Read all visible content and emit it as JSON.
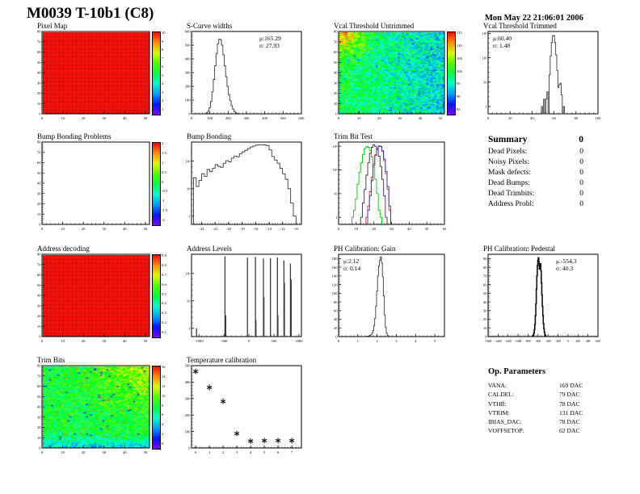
{
  "page": {
    "title": "M0039 T-10b1 (C8)",
    "timestamp": "Mon May 22 21:06:01 2006"
  },
  "summary": {
    "title": "Summary",
    "total": "0",
    "rows": [
      {
        "label": "Dead Pixels:",
        "value": "0"
      },
      {
        "label": "Noisy Pixels:",
        "value": "0"
      },
      {
        "label": "Mask defects:",
        "value": "0"
      },
      {
        "label": "Dead Bumps:",
        "value": "0"
      },
      {
        "label": "Dead Trimbits:",
        "value": "0"
      },
      {
        "label": "Address Probl:",
        "value": "0"
      }
    ]
  },
  "op_parameters": {
    "title": "Op. Parameters",
    "rows": [
      {
        "label": "VANA:",
        "value": "169 DAC"
      },
      {
        "label": "CALDEL:",
        "value": "79 DAC"
      },
      {
        "label": "VTHR:",
        "value": "78 DAC"
      },
      {
        "label": "VTRIM:",
        "value": "131 DAC"
      },
      {
        "label": "IBIAS_DAC:",
        "value": "78 DAC"
      },
      {
        "label": "VOFFSETOP:",
        "value": "62 DAC"
      }
    ]
  },
  "palette": {
    "map_red": "#f5100a",
    "hist_line": "#3a3a3a",
    "green_series": "#00cc00",
    "black_series": "#333333",
    "red_series": "#ee2222",
    "blue_series": "#2233cc"
  },
  "chart_data": [
    {
      "id": "pixel_map",
      "type": "heatmap",
      "title": "Pixel Map",
      "pattern": "uniform-red",
      "ncols": 52,
      "nrows": 80,
      "xrange": [
        0,
        52
      ],
      "x_ticks": [
        0,
        10,
        20,
        30,
        40,
        50
      ],
      "y_tick_labels": [
        "0",
        "10",
        "20",
        "30",
        "40",
        "50",
        "60",
        "70",
        "80"
      ],
      "colorbar_labels": [
        "10",
        "9",
        "8",
        "7",
        "6",
        "5",
        "4",
        "3",
        "2",
        "1"
      ]
    },
    {
      "id": "scurve",
      "type": "hist",
      "title": "S-Curve widths",
      "xrange": [
        0,
        600
      ],
      "x_ticks": [
        0,
        100,
        200,
        300,
        400,
        500,
        600
      ],
      "ylog": false,
      "ymax": 600,
      "y_ticks": [
        {
          "v": 0,
          "l": "0"
        },
        {
          "v": 100,
          "l": "100"
        },
        {
          "v": 200,
          "l": "200"
        },
        {
          "v": 300,
          "l": "300"
        },
        {
          "v": 400,
          "l": "400"
        },
        {
          "v": 500,
          "l": "500"
        },
        {
          "v": 600,
          "l": "600"
        }
      ],
      "x0": 70,
      "dx": 7.5,
      "counts": [
        1,
        3,
        8,
        20,
        45,
        90,
        160,
        250,
        350,
        440,
        510,
        545,
        540,
        500,
        430,
        350,
        270,
        200,
        140,
        95,
        60,
        35,
        18,
        8,
        3
      ],
      "color": "#3a3a3a",
      "stats": {
        "lines": [
          "μ:165.29",
          "σ: 27.93"
        ],
        "pos": "tr"
      }
    },
    {
      "id": "vcal_untrimmed",
      "type": "heatmap",
      "title": "Vcal Threshold Untrimmed",
      "pattern": "noise-vcal",
      "ncols": 52,
      "nrows": 80,
      "xrange": [
        0,
        52
      ],
      "x_ticks": [
        0,
        10,
        20,
        30,
        40,
        50
      ],
      "y_tick_labels": [
        "0",
        "10",
        "20",
        "30",
        "40",
        "50",
        "60",
        "70",
        "80"
      ],
      "colorbar_labels": [
        "115",
        "110",
        "105",
        "100",
        "95",
        "90",
        "85"
      ],
      "value_range": [
        85,
        115
      ]
    },
    {
      "id": "vcal_trimmed",
      "type": "hist",
      "title": "Vcal Threshold Trimmed",
      "xrange": [
        0,
        100
      ],
      "x_ticks": [
        0,
        20,
        40,
        60,
        80,
        100
      ],
      "ylog": true,
      "ymax": 1200,
      "y_ticks": [
        {
          "v": 1,
          "l": "1"
        },
        {
          "v": 10,
          "l": "10"
        },
        {
          "v": 100,
          "l": "10²"
        },
        {
          "v": 1000,
          "l": "10³"
        }
      ],
      "x0": 49,
      "dx": 1,
      "counts": [
        1,
        0,
        2,
        0,
        2,
        4,
        0,
        20,
        120,
        420,
        780,
        820,
        420,
        130,
        30,
        6,
        8,
        9,
        3,
        0,
        1
      ],
      "color": "#3a3a3a",
      "stats": {
        "lines": [
          "μ:60.40",
          "σ: 1.48"
        ],
        "pos": "tl"
      }
    },
    {
      "id": "bump_problems",
      "type": "heatmap",
      "title": "Bump Bonding Problems",
      "pattern": "empty",
      "ncols": 52,
      "nrows": 80,
      "xrange": [
        0,
        52
      ],
      "x_ticks": [
        0,
        10,
        20,
        30,
        40,
        50
      ],
      "y_tick_labels": [
        "0",
        "10",
        "20",
        "30",
        "40",
        "50",
        "60",
        "70",
        "80"
      ],
      "colorbar_labels": [
        "2",
        "1.5",
        "1",
        "0.5",
        "0",
        "-0.5",
        "-1",
        "-1.5",
        "-2"
      ]
    },
    {
      "id": "bump_bonding",
      "type": "hist",
      "title": "Bump Bonding",
      "xrange": [
        -25.5,
        -9.2
      ],
      "x_ticks": [
        -24,
        -22,
        -20,
        -18,
        -16,
        -14,
        -12,
        -10
      ],
      "ylog": true,
      "ymax": 500,
      "y_ticks": [
        {
          "v": 1,
          "l": "1"
        },
        {
          "v": 10,
          "l": "10"
        },
        {
          "v": 100,
          "l": "10²"
        }
      ],
      "x0": -25,
      "dx": 0.4,
      "counts": [
        25,
        12,
        20,
        35,
        28,
        50,
        42,
        55,
        75,
        65,
        60,
        85,
        105,
        95,
        130,
        155,
        145,
        190,
        220,
        250,
        290,
        330,
        360,
        385,
        400,
        390,
        398,
        375,
        260,
        150,
        110,
        85,
        55,
        35,
        22,
        10,
        3,
        1
      ],
      "color": "#3a3a3a"
    },
    {
      "id": "trimbit_test",
      "type": "multihist",
      "title": "Trim Bit Test",
      "xrange": [
        0,
        60
      ],
      "x_ticks": [
        0,
        10,
        20,
        30,
        40,
        50,
        60
      ],
      "ylog": true,
      "ymax": 1500,
      "y_ticks": [
        {
          "v": 1,
          "l": "1"
        },
        {
          "v": 10,
          "l": "10"
        },
        {
          "v": 100,
          "l": "10²"
        },
        {
          "v": 1000,
          "l": "10³"
        }
      ],
      "series": [
        {
          "name": "green-series",
          "color": "#00cc00",
          "x0": 8,
          "dx": 1,
          "counts": [
            1,
            2,
            6,
            25,
            80,
            200,
            450,
            800,
            1000,
            900,
            650,
            350,
            130,
            40,
            10,
            2,
            1
          ]
        },
        {
          "name": "black-series",
          "color": "#333333",
          "x0": 13,
          "dx": 1,
          "counts": [
            1,
            4,
            15,
            60,
            200,
            500,
            900,
            1150,
            1000,
            700,
            380,
            140,
            40,
            8,
            1
          ]
        },
        {
          "name": "red-series",
          "color": "#ee2222",
          "x0": 16,
          "dx": 1,
          "counts": [
            1,
            3,
            12,
            50,
            180,
            450,
            820,
            1020,
            950,
            600,
            250,
            70,
            15,
            2
          ]
        },
        {
          "name": "blue-series",
          "color": "#2233cc",
          "x0": 17,
          "dx": 1,
          "counts": [
            2,
            8,
            35,
            150,
            400,
            780,
            1040,
            990,
            650,
            290,
            85,
            20,
            3
          ]
        }
      ]
    },
    {
      "id": "address_decoding",
      "type": "heatmap",
      "title": "Address decoding",
      "pattern": "uniform-red",
      "ncols": 52,
      "nrows": 80,
      "xrange": [
        0,
        52
      ],
      "x_ticks": [
        0,
        10,
        20,
        30,
        40,
        50
      ],
      "y_tick_labels": [
        "0",
        "10",
        "20",
        "30",
        "40",
        "50",
        "60",
        "70",
        "80"
      ],
      "colorbar_labels": [
        "0.9",
        "0.8",
        "0.7",
        "0.6",
        "0.5",
        "0.4",
        "0.3",
        "0.2",
        "0.1"
      ]
    },
    {
      "id": "address_levels",
      "type": "spikes",
      "title": "Address Levels",
      "xrange": [
        -1150,
        1050
      ],
      "x_ticks": [
        -1000,
        -500,
        0,
        500,
        1000
      ],
      "ylog": true,
      "ymax": 500,
      "y_ticks": [
        {
          "v": 1,
          "l": "1"
        },
        {
          "v": 10,
          "l": "10"
        },
        {
          "v": 100,
          "l": "10²"
        }
      ],
      "spikes": [
        [
          -1050,
          1
        ],
        [
          -480,
          420
        ],
        [
          -465,
          3
        ],
        [
          -30,
          380
        ],
        [
          130,
          400
        ],
        [
          140,
          2
        ],
        [
          290,
          350
        ],
        [
          300,
          14
        ],
        [
          430,
          360
        ],
        [
          570,
          380
        ],
        [
          580,
          3
        ],
        [
          700,
          300
        ],
        [
          710,
          45
        ],
        [
          830,
          230
        ],
        [
          845,
          60
        ]
      ],
      "color": "#3a3a3a"
    },
    {
      "id": "ph_gain",
      "type": "hist",
      "title": "PH Calibration: Gain",
      "xrange": [
        0,
        5.5
      ],
      "x_ticks": [
        0,
        1,
        2,
        3,
        4,
        5
      ],
      "ylog": false,
      "ymax": 190,
      "y_ticks": [
        {
          "v": 0,
          "l": "0"
        },
        {
          "v": 20,
          "l": "20"
        },
        {
          "v": 40,
          "l": "40"
        },
        {
          "v": 60,
          "l": "60"
        },
        {
          "v": 80,
          "l": "80"
        },
        {
          "v": 100,
          "l": "100"
        },
        {
          "v": 120,
          "l": "120"
        },
        {
          "v": 140,
          "l": "140"
        },
        {
          "v": 160,
          "l": "160"
        },
        {
          "v": 180,
          "l": "180"
        }
      ],
      "x0": 1.5,
      "dx": 0.05,
      "counts": [
        1,
        1,
        2,
        3,
        5,
        8,
        14,
        25,
        42,
        70,
        105,
        140,
        163,
        176,
        184,
        170,
        138,
        94,
        50,
        22,
        8,
        3,
        1
      ],
      "color": "#3a3a3a",
      "stats": {
        "lines": [
          "μ:2.12",
          "σ: 0.14"
        ],
        "pos": "tl"
      }
    },
    {
      "id": "ph_pedestal",
      "type": "hist",
      "title": "PH Calibration: Pedestal",
      "xrange": [
        -1600,
        600
      ],
      "x_ticks": [
        -1600,
        -1400,
        -1200,
        -1000,
        -800,
        -600,
        -400,
        -200,
        0,
        200,
        400,
        600
      ],
      "ylog": false,
      "ymax": 95,
      "y_ticks": [
        {
          "v": 0,
          "l": "0"
        },
        {
          "v": 10,
          "l": "10"
        },
        {
          "v": 20,
          "l": "20"
        },
        {
          "v": 30,
          "l": "30"
        },
        {
          "v": 40,
          "l": "40"
        },
        {
          "v": 50,
          "l": "50"
        },
        {
          "v": 60,
          "l": "60"
        },
        {
          "v": 70,
          "l": "70"
        },
        {
          "v": 80,
          "l": "80"
        },
        {
          "v": 90,
          "l": "90"
        }
      ],
      "x0": -700,
      "dx": 10,
      "counts": [
        1,
        2,
        4,
        8,
        14,
        24,
        38,
        55,
        70,
        82,
        88,
        91,
        86,
        78,
        80,
        84,
        76,
        62,
        48,
        35,
        24,
        15,
        9,
        5,
        2,
        1
      ],
      "color": "#111111",
      "thick": true,
      "stats": {
        "lines": [
          "μ:-554.3",
          "σ: 40.3"
        ],
        "pos": "tr"
      }
    },
    {
      "id": "trim_bits",
      "type": "heatmap",
      "title": "Trim Bits",
      "pattern": "noise-trim",
      "ncols": 52,
      "nrows": 80,
      "xrange": [
        0,
        52
      ],
      "x_ticks": [
        0,
        10,
        20,
        30,
        40,
        50
      ],
      "y_tick_labels": [
        "0",
        "10",
        "20",
        "30",
        "40",
        "50",
        "60",
        "70",
        "80"
      ],
      "colorbar_labels": [
        "16",
        "14",
        "12",
        "10",
        "8",
        "6",
        "4",
        "2",
        "0"
      ],
      "value_range": [
        0,
        16
      ]
    },
    {
      "id": "temp_calibration",
      "type": "scatter",
      "title": "Temperature calibration",
      "xrange": [
        -0.3,
        7.7
      ],
      "x_ticks": [
        0,
        1,
        2,
        3,
        4,
        5,
        6,
        7
      ],
      "ylog": false,
      "ymax": 500,
      "y_ticks": [
        {
          "v": 0,
          "l": "0"
        },
        {
          "v": 100,
          "l": "100"
        },
        {
          "v": 200,
          "l": "200"
        },
        {
          "v": 300,
          "l": "300"
        },
        {
          "v": 400,
          "l": "400"
        },
        {
          "v": 500,
          "l": "500"
        }
      ],
      "points": [
        [
          0,
          465
        ],
        [
          1,
          368
        ],
        [
          2,
          283
        ],
        [
          3,
          88
        ],
        [
          4,
          42
        ],
        [
          5,
          45
        ],
        [
          6,
          45
        ],
        [
          7,
          45
        ]
      ],
      "marker": "asterisk",
      "color": "#111111"
    }
  ]
}
